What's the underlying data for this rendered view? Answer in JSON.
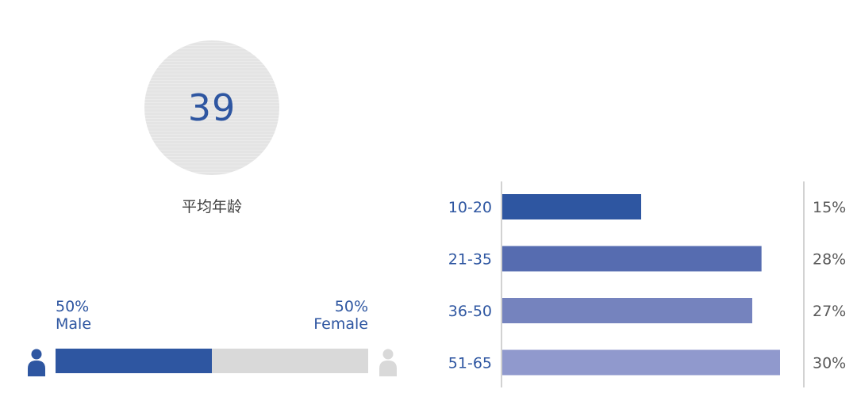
{
  "average_age": {
    "value": "39",
    "label": "平均年龄"
  },
  "gender": {
    "male": {
      "percent_text": "50%",
      "label": "Male",
      "fraction": 0.5,
      "color": "#2e56a1"
    },
    "female": {
      "percent_text": "50%",
      "label": "Female",
      "fraction": 0.5,
      "color": "#d9d9d9"
    },
    "icons": {
      "male": "person-icon",
      "female": "person-icon"
    }
  },
  "chart_data": {
    "type": "bar",
    "orientation": "horizontal",
    "categories": [
      "10-20",
      "21-35",
      "36-50",
      "51-65"
    ],
    "values": [
      15,
      28,
      27,
      30
    ],
    "value_labels": [
      "15%",
      "28%",
      "27%",
      "30%"
    ],
    "colors": [
      "#2e56a1",
      "#566cb0",
      "#7583be",
      "#9099cd"
    ],
    "xlim": [
      0,
      30
    ],
    "title": "",
    "xlabel": "",
    "ylabel": "",
    "grid": false,
    "legend": "none"
  }
}
